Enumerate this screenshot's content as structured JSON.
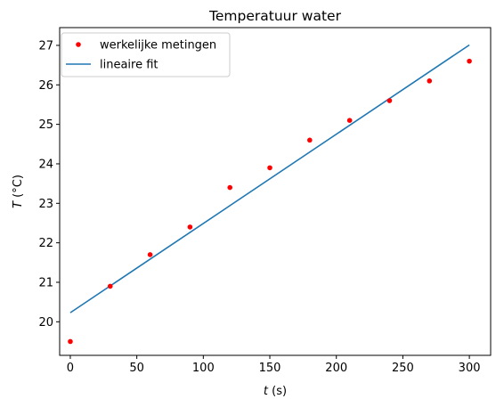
{
  "chart_data": {
    "type": "scatter",
    "title": "Temperatuur water",
    "xlabel_var": "t",
    "xlabel_unit": " (s)",
    "ylabel_var": "T",
    "ylabel_unit": " (°C)",
    "xlim": [
      -8,
      316
    ],
    "ylim": [
      19.15,
      27.45
    ],
    "xticks": [
      0,
      50,
      100,
      150,
      200,
      250,
      300
    ],
    "yticks": [
      20,
      21,
      22,
      23,
      24,
      25,
      26,
      27
    ],
    "grid": false,
    "legend_position": "top-left",
    "series": [
      {
        "name": "werkelijke metingen",
        "type": "scatter",
        "color": "#ff0000",
        "x": [
          0,
          30,
          60,
          90,
          120,
          150,
          180,
          210,
          240,
          270,
          300
        ],
        "y": [
          19.5,
          20.9,
          21.7,
          22.4,
          23.4,
          23.9,
          24.6,
          25.1,
          25.6,
          26.1,
          26.6
        ]
      },
      {
        "name": "lineaire fit",
        "type": "line",
        "color": "#1f77b4",
        "x": [
          0,
          300
        ],
        "y": [
          20.23,
          27.01
        ]
      }
    ]
  }
}
